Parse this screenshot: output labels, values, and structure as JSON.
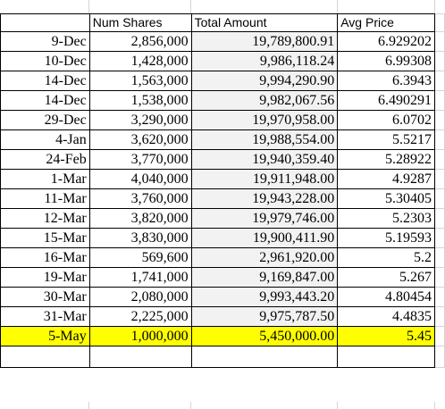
{
  "headers": {
    "date": "",
    "shares": "Num Shares",
    "total": "Total Amount",
    "price": "Avg Price"
  },
  "rows": [
    {
      "date": "9-Dec",
      "shares": "2,856,000",
      "total": "19,789,800.91",
      "price": "6.929202"
    },
    {
      "date": "10-Dec",
      "shares": "1,428,000",
      "total": "9,986,118.24",
      "price": "6.99308"
    },
    {
      "date": "14-Dec",
      "shares": "1,563,000",
      "total": "9,994,290.90",
      "price": "6.3943"
    },
    {
      "date": "14-Dec",
      "shares": "1,538,000",
      "total": "9,982,067.56",
      "price": "6.490291"
    },
    {
      "date": "29-Dec",
      "shares": "3,290,000",
      "total": "19,970,958.00",
      "price": "6.0702"
    },
    {
      "date": "4-Jan",
      "shares": "3,620,000",
      "total": "19,988,554.00",
      "price": "5.5217"
    },
    {
      "date": "24-Feb",
      "shares": "3,770,000",
      "total": "19,940,359.40",
      "price": "5.28922"
    },
    {
      "date": "1-Mar",
      "shares": "4,040,000",
      "total": "19,911,948.00",
      "price": "4.9287"
    },
    {
      "date": "11-Mar",
      "shares": "3,760,000",
      "total": "19,943,228.00",
      "price": "5.30405"
    },
    {
      "date": "12-Mar",
      "shares": "3,820,000",
      "total": "19,979,746.00",
      "price": "5.2303"
    },
    {
      "date": "15-Mar",
      "shares": "3,830,000",
      "total": "19,900,411.90",
      "price": "5.19593"
    },
    {
      "date": "16-Mar",
      "shares": "569,600",
      "total": "2,961,920.00",
      "price": "5.2"
    },
    {
      "date": "19-Mar",
      "shares": "1,741,000",
      "total": "9,169,847.00",
      "price": "5.267"
    },
    {
      "date": "30-Mar",
      "shares": "2,080,000",
      "total": "9,993,443.20",
      "price": "4.80454"
    },
    {
      "date": "31-Mar",
      "shares": "2,225,000",
      "total": "9,975,787.50",
      "price": "4.4835"
    },
    {
      "date": "5-May",
      "shares": "1,000,000",
      "total": "5,450,000.00",
      "price": "5.45",
      "highlight": true
    }
  ],
  "colors": {
    "highlight": "#ffff00",
    "total_fill": "#f2f2f2",
    "gridline": "#d4d4d4",
    "border": "#000000"
  }
}
